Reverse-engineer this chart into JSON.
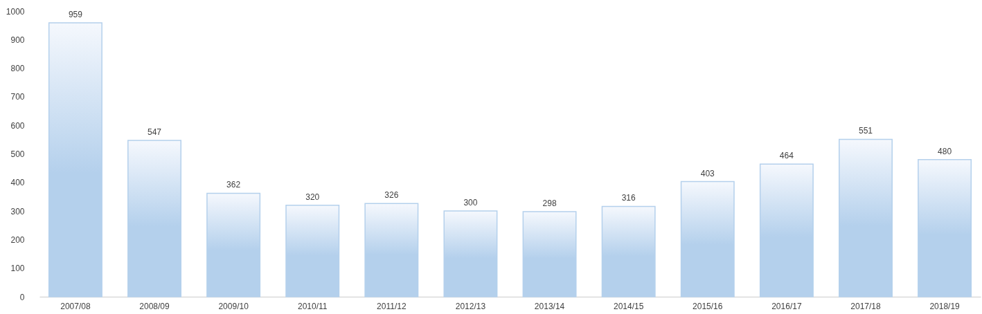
{
  "chart_data": {
    "type": "bar",
    "categories": [
      "2007/08",
      "2008/09",
      "2009/10",
      "2010/11",
      "2011/12",
      "2012/13",
      "2013/14",
      "2014/15",
      "2015/16",
      "2016/17",
      "2017/18",
      "2018/19"
    ],
    "values": [
      959,
      547,
      362,
      320,
      326,
      300,
      298,
      316,
      403,
      464,
      551,
      480
    ],
    "color": "#b4d0ec",
    "ylim": [
      0,
      1000
    ],
    "yticks": [
      0,
      100,
      200,
      300,
      400,
      500,
      600,
      700,
      800,
      900,
      1000
    ],
    "grid": false,
    "data_labels": true
  }
}
